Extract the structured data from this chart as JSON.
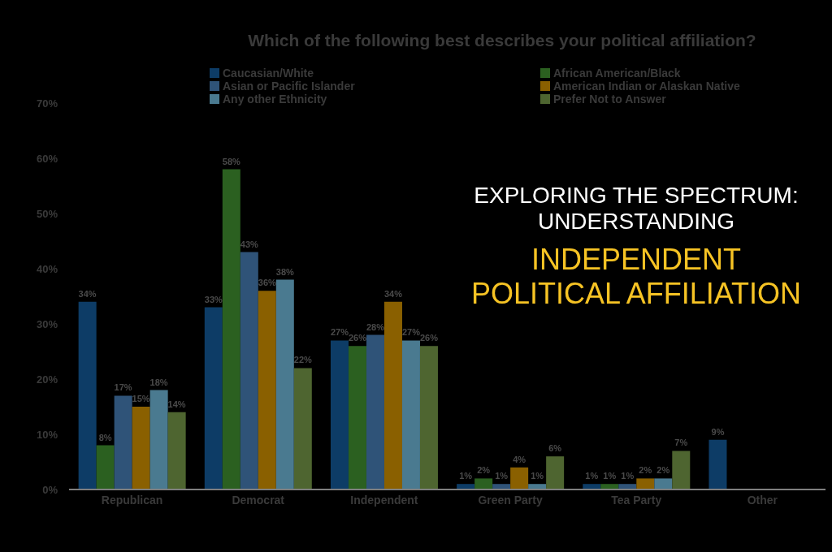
{
  "chart_data": {
    "type": "bar",
    "title": "Which of the following best describes your political affiliation?",
    "annotations": [
      "EXPLORING THE SPECTRUM: UNDERSTANDING",
      "INDEPENDENT POLITICAL AFFILIATION"
    ],
    "categories": [
      "Republican",
      "Democrat",
      "Independent",
      "Green Party",
      "Tea Party",
      "Other"
    ],
    "series": [
      {
        "name": "Caucasian/White",
        "color": "#0d3c66",
        "values": [
          34,
          33,
          27,
          1,
          1,
          9
        ],
        "value_labels": [
          "34%",
          "33%",
          "27%",
          "1%",
          "1%",
          "9%"
        ]
      },
      {
        "name": "African American/Black",
        "color": "#2b6020",
        "values": [
          8,
          58,
          26,
          2,
          1,
          null
        ],
        "value_labels": [
          "8%",
          "58%",
          "26%",
          "2%",
          "1%",
          null
        ]
      },
      {
        "name": "Asian or Pacific Islander",
        "color": "#2f5378",
        "values": [
          17,
          43,
          28,
          1,
          1,
          null
        ],
        "value_labels": [
          "17%",
          "43%",
          "28%",
          "1%",
          "1%",
          null
        ]
      },
      {
        "name": "American Indian or Alaskan Native",
        "color": "#8a6000",
        "values": [
          15,
          36,
          34,
          4,
          2,
          null
        ],
        "value_labels": [
          "15%",
          "36%",
          "34%",
          "4%",
          "2%",
          null
        ]
      },
      {
        "name": "Any other Ethnicity",
        "color": "#4a7a90",
        "values": [
          18,
          38,
          27,
          1,
          2,
          null
        ],
        "value_labels": [
          "18%",
          "38%",
          "27%",
          "1%",
          "2%",
          null
        ]
      },
      {
        "name": "Prefer Not to Answer",
        "color": "#4e6530",
        "values": [
          14,
          22,
          26,
          6,
          7,
          null
        ],
        "value_labels": [
          "14%",
          "22%",
          "26%",
          "6%",
          "7%",
          null
        ]
      }
    ],
    "ylim": [
      0,
      70
    ],
    "yticks": [
      {
        "value": 0,
        "label": "0%"
      },
      {
        "value": 10,
        "label": "10%"
      },
      {
        "value": 20,
        "label": "20%"
      },
      {
        "value": 30,
        "label": "30%"
      },
      {
        "value": 40,
        "label": "40%"
      },
      {
        "value": 50,
        "label": "50%"
      },
      {
        "value": 60,
        "label": "60%"
      },
      {
        "value": 70,
        "label": "70%"
      }
    ],
    "legend": "top"
  }
}
